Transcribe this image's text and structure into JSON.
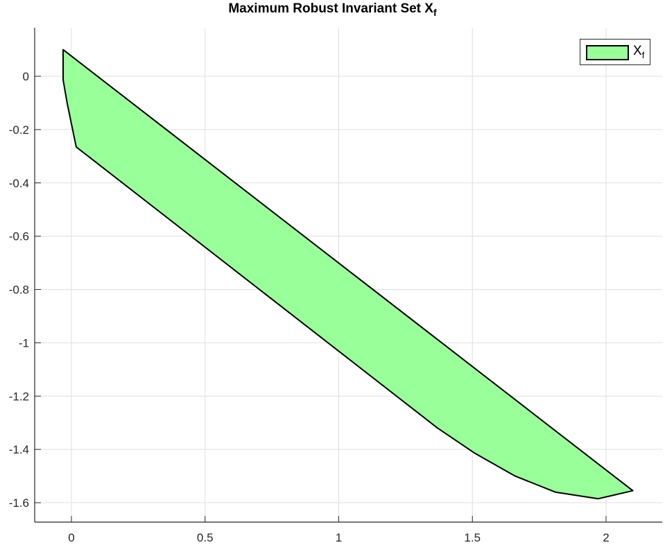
{
  "chart_data": {
    "type": "area",
    "title": "Maximum Robust Invariant Set X_f",
    "title_main": "Maximum Robust Invariant Set X",
    "title_sub": "f",
    "xlabel": "",
    "ylabel": "",
    "xlim": [
      -0.14,
      2.2
    ],
    "ylim": [
      -1.67,
      0.18
    ],
    "xticks": [
      0,
      0.5,
      1,
      1.5,
      2
    ],
    "xtick_labels": [
      "0",
      "0.5",
      "1",
      "1.5",
      "2"
    ],
    "yticks": [
      0,
      -0.2,
      -0.4,
      -0.6,
      -0.8,
      -1,
      -1.2,
      -1.4,
      -1.6
    ],
    "ytick_labels": [
      "0",
      "-0.2",
      "-0.4",
      "-0.6",
      "-0.8",
      "-1",
      "-1.2",
      "-1.4",
      "-1.6"
    ],
    "grid": true,
    "legend_position": "northeast",
    "series": [
      {
        "name": "X_f",
        "legend_main": "X",
        "legend_sub": "f",
        "fill_color": "#99ff99",
        "edge_color": "#000000",
        "polygon_x": [
          -0.031,
          2.1,
          1.97,
          1.81,
          1.66,
          1.51,
          1.37,
          0.018,
          -0.016,
          -0.031
        ],
        "polygon_y": [
          0.1,
          -1.555,
          -1.585,
          -1.56,
          -1.5,
          -1.415,
          -1.32,
          -0.265,
          -0.1,
          -0.013
        ]
      }
    ]
  }
}
